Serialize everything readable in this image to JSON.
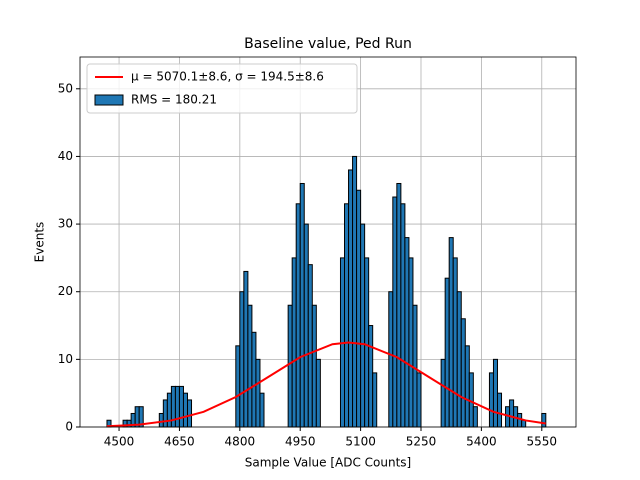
{
  "chart_data": {
    "type": "histogram",
    "title": "Baseline value, Ped Run",
    "xlabel": "Sample Value [ADC Counts]",
    "ylabel": "Events",
    "xlim": [
      4403,
      5635
    ],
    "ylim": [
      0,
      54.7
    ],
    "xticks": [
      4500,
      4650,
      4800,
      4950,
      5100,
      5250,
      5400,
      5550
    ],
    "yticks": [
      0,
      10,
      20,
      30,
      40,
      50
    ],
    "grid": true,
    "legend": "upper left",
    "bins": [
      4470,
      4480,
      4490,
      4500,
      4510,
      4520,
      4530,
      4540,
      4550,
      4560,
      4570,
      4580,
      4590,
      4600,
      4610,
      4620,
      4630,
      4640,
      4650,
      4660,
      4670,
      4680,
      4690,
      4700,
      4710,
      4720,
      4730,
      4740,
      4750,
      4760,
      4770,
      4780,
      4790,
      4800,
      4810,
      4820,
      4830,
      4840,
      4850,
      4860,
      4870,
      4880,
      4890,
      4900,
      4910,
      4920,
      4930,
      4940,
      4950,
      4960,
      4970,
      4980,
      4990,
      5000,
      5010,
      5020,
      5030,
      5040,
      5050,
      5060,
      5070,
      5080,
      5090,
      5100,
      5110,
      5120,
      5130,
      5140,
      5150,
      5160,
      5170,
      5180,
      5190,
      5200,
      5210,
      5220,
      5230,
      5240,
      5250,
      5260,
      5270,
      5280,
      5290,
      5300,
      5310,
      5320,
      5330,
      5340,
      5350,
      5360,
      5370,
      5380,
      5390,
      5400,
      5410,
      5420,
      5430,
      5440,
      5450,
      5460,
      5470,
      5480,
      5490,
      5500,
      5510,
      5520,
      5530,
      5540,
      5550,
      5560,
      5570
    ],
    "series": [
      {
        "name": "μ = 5070.1±8.6, σ = 194.5±8.6",
        "type": "line",
        "color": "#ff0000",
        "x": [
          4470,
          4550,
          4630,
          4710,
          4790,
          4870,
          4950,
          5030,
          5070,
          5110,
          5190,
          5270,
          5350,
          5430,
          5510,
          5560
        ],
        "values": [
          0.11,
          0.35,
          0.97,
          2.25,
          4.43,
          7.37,
          10.33,
          12.24,
          12.5,
          12.24,
          10.33,
          7.37,
          4.43,
          2.25,
          0.97,
          0.52
        ]
      },
      {
        "name": "RMS = 180.21",
        "type": "histogram",
        "color": "#1f77b4",
        "edgecolor": "#000000",
        "values": [
          1,
          0,
          0,
          0,
          1,
          1,
          2,
          3,
          3,
          0,
          0,
          0,
          0,
          2,
          4,
          5,
          6,
          6,
          6,
          5,
          4,
          0,
          0,
          0,
          0,
          0,
          0,
          0,
          0,
          0,
          0,
          0,
          12,
          20,
          23,
          18,
          14,
          10,
          5,
          0,
          0,
          0,
          0,
          0,
          0,
          18,
          25,
          33,
          36,
          30,
          24,
          18,
          10,
          0,
          0,
          0,
          0,
          0,
          25,
          33,
          38,
          40,
          35,
          30,
          25,
          15,
          8,
          0,
          0,
          0,
          20,
          34,
          36,
          33,
          28,
          25,
          18,
          8,
          0,
          0,
          0,
          0,
          0,
          10,
          22,
          28,
          25,
          20,
          16,
          12,
          8,
          3,
          0,
          0,
          0,
          8,
          10,
          5,
          0,
          3,
          4,
          3,
          2,
          1,
          0,
          0,
          0,
          0,
          2,
          0
        ]
      }
    ]
  }
}
